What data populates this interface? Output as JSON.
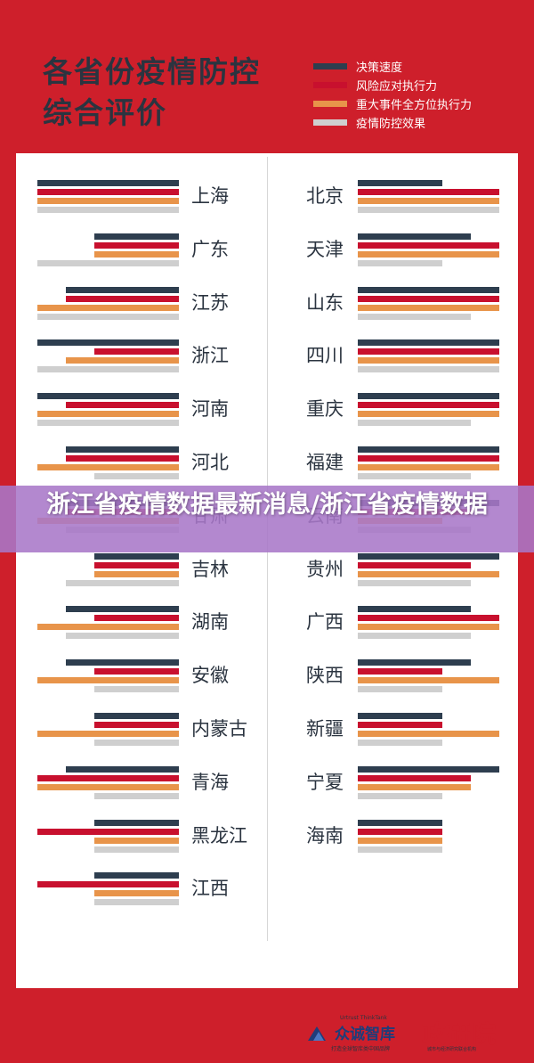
{
  "header": {
    "title": "各省份疫情防控\n综合评价"
  },
  "legend": [
    {
      "label": "决策速度",
      "color": "#2e3e4f"
    },
    {
      "label": "风险应对执行力",
      "color": "#c8102e"
    },
    {
      "label": "重大事件全方位执行力",
      "color": "#e8944a"
    },
    {
      "label": "疫情防控效果",
      "color": "#cfcfcf"
    }
  ],
  "chart_data": {
    "type": "bar",
    "title": "各省份疫情防控综合评价",
    "metrics": [
      "决策速度",
      "风险应对执行力",
      "重大事件全方位执行力",
      "疫情防控效果"
    ],
    "max_value": 1.0,
    "left_column": [
      {
        "name": "上海",
        "values": [
          1.0,
          1.0,
          1.0,
          1.0
        ]
      },
      {
        "name": "广东",
        "values": [
          0.6,
          0.6,
          0.6,
          1.0
        ]
      },
      {
        "name": "江苏",
        "values": [
          0.8,
          0.8,
          1.0,
          1.0
        ]
      },
      {
        "name": "浙江",
        "values": [
          1.0,
          0.6,
          0.8,
          1.0
        ]
      },
      {
        "name": "河南",
        "values": [
          1.0,
          0.8,
          1.0,
          1.0
        ]
      },
      {
        "name": "河北",
        "values": [
          0.8,
          0.8,
          1.0,
          0.6
        ]
      },
      {
        "name": "甘肃",
        "values": [
          0.8,
          0.8,
          1.0,
          0.8
        ]
      },
      {
        "name": "吉林",
        "values": [
          0.6,
          0.6,
          0.6,
          0.8
        ]
      },
      {
        "name": "湖南",
        "values": [
          0.8,
          0.6,
          1.0,
          0.8
        ]
      },
      {
        "name": "安徽",
        "values": [
          0.8,
          0.6,
          1.0,
          0.6
        ]
      },
      {
        "name": "内蒙古",
        "values": [
          0.6,
          0.6,
          1.0,
          0.6
        ]
      },
      {
        "name": "青海",
        "values": [
          0.8,
          1.0,
          1.0,
          0.6
        ]
      },
      {
        "name": "黑龙江",
        "values": [
          0.6,
          1.0,
          0.6,
          0.6
        ]
      },
      {
        "name": "江西",
        "values": [
          0.6,
          1.0,
          0.6,
          0.6
        ]
      }
    ],
    "right_column": [
      {
        "name": "北京",
        "values": [
          0.6,
          1.0,
          1.0,
          1.0
        ]
      },
      {
        "name": "天津",
        "values": [
          0.8,
          1.0,
          1.0,
          0.6
        ]
      },
      {
        "name": "山东",
        "values": [
          1.0,
          1.0,
          1.0,
          0.8
        ]
      },
      {
        "name": "四川",
        "values": [
          1.0,
          1.0,
          1.0,
          1.0
        ]
      },
      {
        "name": "重庆",
        "values": [
          1.0,
          1.0,
          1.0,
          0.8
        ]
      },
      {
        "name": "福建",
        "values": [
          1.0,
          1.0,
          1.0,
          0.8
        ]
      },
      {
        "name": "云南",
        "values": [
          1.0,
          0.8,
          0.6,
          0.8
        ]
      },
      {
        "name": "贵州",
        "values": [
          1.0,
          0.8,
          1.0,
          0.8
        ]
      },
      {
        "name": "广西",
        "values": [
          0.8,
          1.0,
          1.0,
          0.8
        ]
      },
      {
        "name": "陕西",
        "values": [
          0.8,
          0.6,
          1.0,
          0.6
        ]
      },
      {
        "name": "新疆",
        "values": [
          0.6,
          0.6,
          1.0,
          0.6
        ]
      },
      {
        "name": "宁夏",
        "values": [
          1.0,
          0.8,
          0.8,
          0.6
        ]
      },
      {
        "name": "海南",
        "values": [
          0.6,
          0.6,
          0.6,
          0.6
        ]
      }
    ]
  },
  "overlay": {
    "banner_text": "浙江省疫情数据最新消息/浙江省疫情数据"
  },
  "footer": {
    "brand1_en": "Urtrust ThinkTank",
    "brand1_cn": "众诚智库",
    "brand1_sub": "打造全球智库类中国品牌",
    "brand2_cn": "政研院",
    "brand2_sub": "城市与经济研究联合机构"
  }
}
